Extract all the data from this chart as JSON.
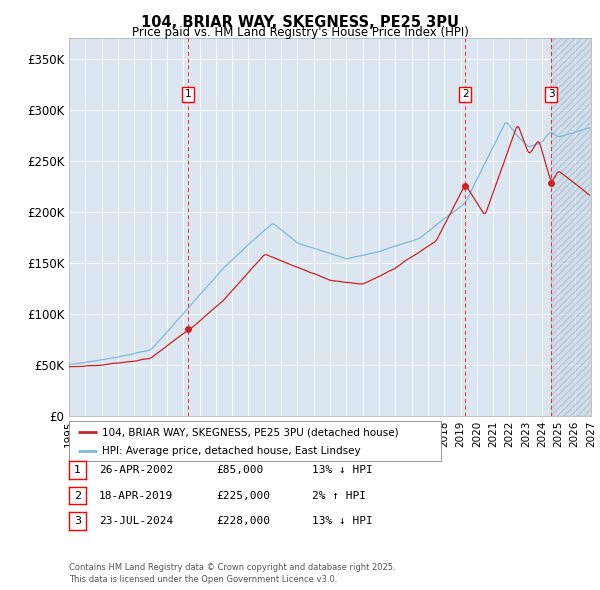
{
  "title": "104, BRIAR WAY, SKEGNESS, PE25 3PU",
  "subtitle": "Price paid vs. HM Land Registry's House Price Index (HPI)",
  "ylim": [
    0,
    370000
  ],
  "yticks": [
    0,
    50000,
    100000,
    150000,
    200000,
    250000,
    300000,
    350000
  ],
  "ytick_labels": [
    "£0",
    "£50K",
    "£100K",
    "£150K",
    "£200K",
    "£250K",
    "£300K",
    "£350K"
  ],
  "xmin": 1995.0,
  "xmax": 2027.0,
  "sale_dates": [
    2002.32,
    2019.3,
    2024.56
  ],
  "sale_prices": [
    85000,
    225000,
    228000
  ],
  "sale_labels": [
    "1",
    "2",
    "3"
  ],
  "legend_red": "104, BRIAR WAY, SKEGNESS, PE25 3PU (detached house)",
  "legend_blue": "HPI: Average price, detached house, East Lindsey",
  "table_rows": [
    [
      "1",
      "26-APR-2002",
      "£85,000",
      "13% ↓ HPI"
    ],
    [
      "2",
      "18-APR-2019",
      "£225,000",
      "2% ↑ HPI"
    ],
    [
      "3",
      "23-JUL-2024",
      "£228,000",
      "13% ↓ HPI"
    ]
  ],
  "footer": "Contains HM Land Registry data © Crown copyright and database right 2025.\nThis data is licensed under the Open Government Licence v3.0.",
  "hatch_region_start": 2024.56,
  "hatch_region_end": 2027.0,
  "plot_bg": "#dce6f1"
}
